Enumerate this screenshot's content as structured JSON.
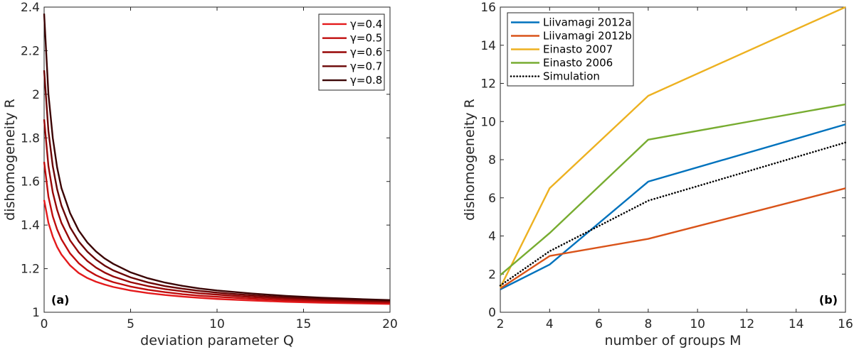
{
  "chart_data": [
    {
      "type": "line",
      "panel_label": "(a)",
      "xlabel": "deviation parameter Q",
      "ylabel": "dishomogeneity R",
      "xlim": [
        0,
        20
      ],
      "ylim": [
        1,
        2.4
      ],
      "xticks": [
        0,
        5,
        10,
        15,
        20
      ],
      "yticks": [
        1,
        1.2,
        1.4,
        1.6,
        1.8,
        2,
        2.2,
        2.4
      ],
      "grid": false,
      "legend_position": "top-right",
      "x": [
        0,
        0.25,
        0.5,
        0.75,
        1,
        1.5,
        2,
        2.5,
        3,
        3.5,
        4,
        5,
        6,
        7,
        8,
        9,
        10,
        12,
        14,
        16,
        18,
        20
      ],
      "series": [
        {
          "name": "γ=0.4",
          "color": "#e41a1c",
          "values": [
            1.515,
            1.41,
            1.347,
            1.3,
            1.265,
            1.215,
            1.18,
            1.157,
            1.14,
            1.127,
            1.116,
            1.1,
            1.088,
            1.079,
            1.072,
            1.066,
            1.061,
            1.054,
            1.048,
            1.044,
            1.041,
            1.038
          ]
        },
        {
          "name": "γ=0.5",
          "color": "#c00d0d",
          "values": [
            1.69,
            1.53,
            1.44,
            1.38,
            1.335,
            1.27,
            1.225,
            1.193,
            1.17,
            1.152,
            1.138,
            1.118,
            1.103,
            1.092,
            1.083,
            1.076,
            1.071,
            1.062,
            1.055,
            1.05,
            1.046,
            1.043
          ]
        },
        {
          "name": "γ=0.6",
          "color": "#970707",
          "values": [
            1.885,
            1.67,
            1.55,
            1.47,
            1.41,
            1.33,
            1.275,
            1.235,
            1.205,
            1.182,
            1.164,
            1.138,
            1.12,
            1.106,
            1.096,
            1.087,
            1.081,
            1.07,
            1.062,
            1.056,
            1.051,
            1.048
          ]
        },
        {
          "name": "γ=0.7",
          "color": "#6a0505",
          "values": [
            2.11,
            1.83,
            1.67,
            1.565,
            1.49,
            1.39,
            1.325,
            1.278,
            1.242,
            1.214,
            1.192,
            1.16,
            1.137,
            1.12,
            1.108,
            1.098,
            1.09,
            1.078,
            1.068,
            1.061,
            1.056,
            1.052
          ]
        },
        {
          "name": "γ=0.8",
          "color": "#3b0404",
          "values": [
            2.37,
            2.0,
            1.8,
            1.665,
            1.57,
            1.455,
            1.375,
            1.32,
            1.279,
            1.247,
            1.222,
            1.183,
            1.156,
            1.136,
            1.121,
            1.109,
            1.1,
            1.086,
            1.075,
            1.067,
            1.061,
            1.056
          ]
        }
      ]
    },
    {
      "type": "line",
      "panel_label": "(b)",
      "xlabel": "number of groups M",
      "ylabel": "dishomogeneity R",
      "xlim": [
        2,
        16
      ],
      "ylim": [
        0,
        16
      ],
      "xticks": [
        2,
        4,
        6,
        8,
        10,
        12,
        14,
        16
      ],
      "yticks": [
        0,
        2,
        4,
        6,
        8,
        10,
        12,
        14,
        16
      ],
      "grid": false,
      "legend_position": "top-left",
      "x": [
        2,
        4,
        8,
        16
      ],
      "series": [
        {
          "name": "Liivamagi 2012a",
          "color": "#0072bd",
          "style": "solid",
          "values": [
            1.2,
            2.5,
            6.85,
            9.85
          ]
        },
        {
          "name": "Liivamagi 2012b",
          "color": "#d95319",
          "style": "solid",
          "values": [
            1.25,
            2.95,
            3.85,
            6.5
          ]
        },
        {
          "name": "Einasto 2007",
          "color": "#edb120",
          "style": "solid",
          "values": [
            1.3,
            6.5,
            11.35,
            16.0
          ]
        },
        {
          "name": "Einasto 2006",
          "color": "#77ac30",
          "style": "solid",
          "values": [
            1.95,
            4.15,
            9.05,
            10.9
          ]
        },
        {
          "name": "Simulation",
          "color": "#000000",
          "style": "dotted",
          "values": [
            1.4,
            3.2,
            5.85,
            8.9
          ]
        }
      ]
    }
  ]
}
